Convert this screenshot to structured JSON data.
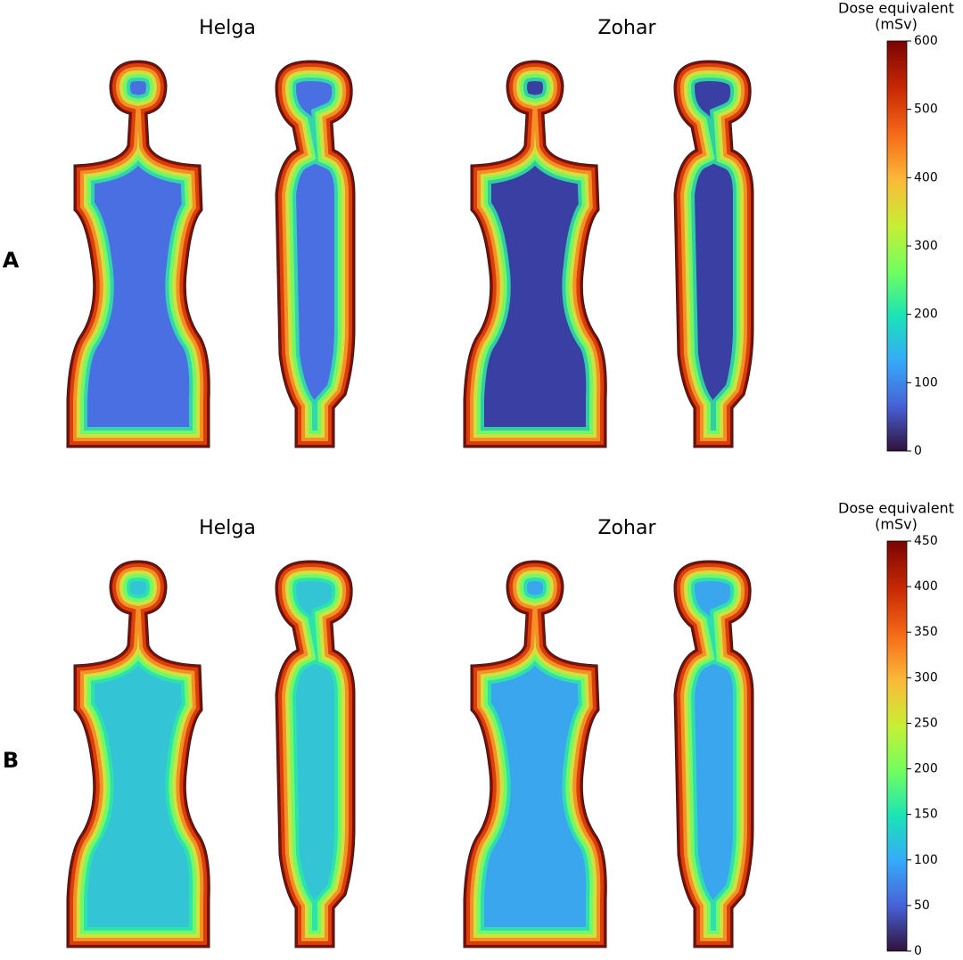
{
  "chart_data": [
    {
      "type": "heatmap",
      "label": "A",
      "subplot_titles": [
        "Helga",
        "Zohar"
      ],
      "colorbar_title": [
        "Dose equivalent",
        "(mSv)"
      ],
      "colormap": "turbo",
      "clim": [
        0,
        600
      ],
      "cticks": [
        0,
        100,
        200,
        300,
        400,
        500,
        600
      ]
    },
    {
      "type": "heatmap",
      "label": "B",
      "subplot_titles": [
        "Helga",
        "Zohar"
      ],
      "colorbar_title": [
        "Dose equivalent",
        "(mSv)"
      ],
      "colormap": "turbo",
      "clim": [
        0,
        450
      ],
      "cticks": [
        0,
        50,
        100,
        150,
        200,
        250,
        300,
        350,
        400,
        450
      ]
    }
  ]
}
